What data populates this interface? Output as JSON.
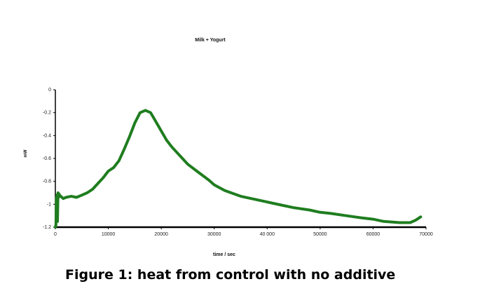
{
  "caption": "Figure 1: heat from control with no additive",
  "chart_data": {
    "type": "line",
    "title": "Milk + Yogurt",
    "xlabel": "time / sec",
    "ylabel": "mW",
    "xlim": [
      0,
      70000
    ],
    "ylim": [
      -1.2,
      0
    ],
    "x_ticks": [
      0,
      10000,
      20000,
      30000,
      40000,
      50000,
      60000,
      70000
    ],
    "x_tick_labels": [
      "0",
      "10000",
      "20000",
      "30000",
      "40 000",
      "50000",
      "60000",
      "70000"
    ],
    "y_ticks": [
      0,
      -0.2,
      -0.4,
      -0.6,
      -0.8,
      -1,
      -1.2
    ],
    "y_tick_labels": [
      "0",
      "-0.2",
      "-0.4",
      "-0.6",
      "-0.8",
      "-1",
      "-1.2"
    ],
    "grid": false,
    "color": "#1f7d1f",
    "series": [
      {
        "x": [
          0,
          100,
          200,
          300,
          400,
          500,
          600,
          700,
          800,
          1000,
          1500,
          2000,
          3000,
          4000,
          5000,
          6000,
          7000,
          8000,
          9000,
          10000,
          11000,
          12000,
          13000,
          14000,
          15000,
          16000,
          17000,
          18000,
          19000,
          20000,
          21000,
          22000,
          23000,
          24000,
          25000,
          27000,
          29000,
          30000,
          32000,
          35000,
          38000,
          40000,
          43000,
          45000,
          48000,
          50000,
          52000,
          55000,
          58000,
          60000,
          62000,
          65000,
          67000,
          68000,
          69000
        ],
        "y": [
          -1.2,
          -1.18,
          -0.95,
          -0.92,
          -1.15,
          -0.9,
          -0.94,
          -0.91,
          -0.92,
          -0.93,
          -0.95,
          -0.94,
          -0.93,
          -0.94,
          -0.92,
          -0.9,
          -0.87,
          -0.82,
          -0.77,
          -0.71,
          -0.68,
          -0.62,
          -0.52,
          -0.41,
          -0.29,
          -0.2,
          -0.18,
          -0.2,
          -0.28,
          -0.36,
          -0.44,
          -0.5,
          -0.55,
          -0.6,
          -0.65,
          -0.72,
          -0.79,
          -0.83,
          -0.88,
          -0.93,
          -0.96,
          -0.98,
          -1.01,
          -1.03,
          -1.05,
          -1.07,
          -1.08,
          -1.1,
          -1.12,
          -1.13,
          -1.15,
          -1.16,
          -1.16,
          -1.14,
          -1.11
        ]
      }
    ]
  }
}
